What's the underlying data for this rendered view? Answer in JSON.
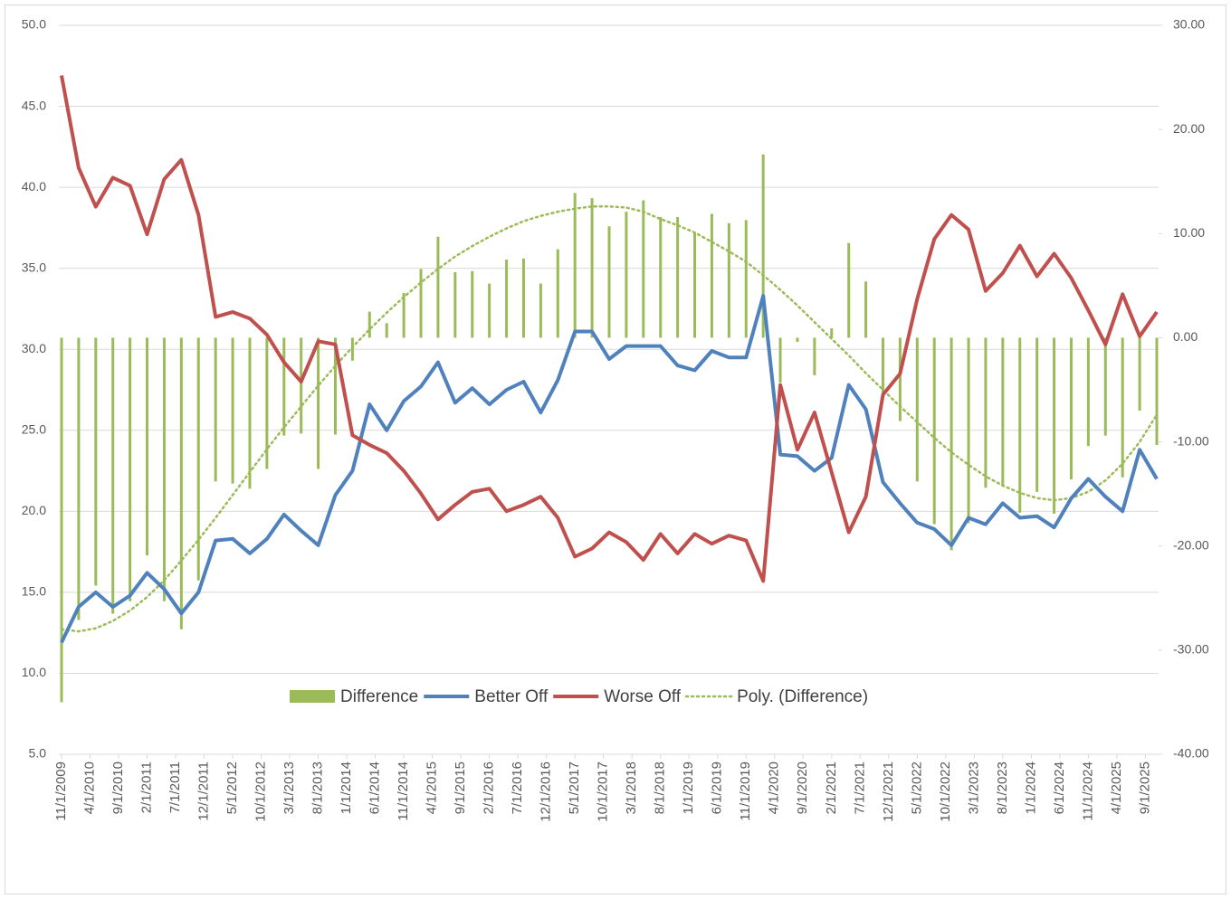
{
  "chart_data": {
    "type": "bar-line",
    "x": [
      "11/1/2009",
      "2/1/2010",
      "5/1/2010",
      "8/1/2010",
      "11/1/2010",
      "2/1/2011",
      "5/1/2011",
      "8/1/2011",
      "11/1/2011",
      "2/1/2012",
      "5/1/2012",
      "8/1/2012",
      "11/1/2012",
      "2/1/2013",
      "5/1/2013",
      "8/1/2013",
      "11/1/2013",
      "2/1/2014",
      "5/1/2014",
      "8/1/2014",
      "11/1/2014",
      "2/1/2015",
      "5/1/2015",
      "8/1/2015",
      "11/1/2015",
      "2/1/2016",
      "5/1/2016",
      "8/1/2016",
      "11/1/2016",
      "2/1/2017",
      "5/1/2017",
      "8/1/2017",
      "11/1/2017",
      "2/1/2018",
      "5/1/2018",
      "8/1/2018",
      "11/1/2018",
      "2/1/2019",
      "5/1/2019",
      "8/1/2019",
      "11/1/2019",
      "2/1/2020",
      "5/1/2020",
      "8/1/2020",
      "11/1/2020",
      "2/1/2021",
      "5/1/2021",
      "8/1/2021",
      "11/1/2021",
      "2/1/2022",
      "5/1/2022",
      "8/1/2022",
      "11/1/2022",
      "2/1/2023",
      "5/1/2023",
      "8/1/2023",
      "11/1/2023",
      "2/1/2024",
      "5/1/2024",
      "8/1/2024",
      "11/1/2024",
      "2/1/2025",
      "5/1/2025",
      "8/1/2025",
      "11/1/2025"
    ],
    "xlim": [
      "11/1/2009",
      "11/1/2025"
    ],
    "xticks": [
      "11/1/2009",
      "4/1/2010",
      "9/1/2010",
      "2/1/2011",
      "7/1/2011",
      "12/1/2011",
      "5/1/2012",
      "10/1/2012",
      "3/1/2013",
      "8/1/2013",
      "1/1/2014",
      "6/1/2014",
      "11/1/2014",
      "4/1/2015",
      "9/1/2015",
      "2/1/2016",
      "7/1/2016",
      "12/1/2016",
      "5/1/2017",
      "10/1/2017",
      "3/1/2018",
      "8/1/2018",
      "1/1/2019",
      "6/1/2019",
      "11/1/2019",
      "4/1/2020",
      "9/1/2020",
      "2/1/2021",
      "7/1/2021",
      "12/1/2021",
      "5/1/2022",
      "10/1/2022",
      "3/1/2023",
      "8/1/2023",
      "1/1/2024",
      "6/1/2024",
      "11/1/2024",
      "4/1/2025",
      "9/1/2025"
    ],
    "ylim": [
      5,
      50
    ],
    "yticks": [
      {
        "value": 5,
        "label": "5.0"
      },
      {
        "value": 10,
        "label": "10.0"
      },
      {
        "value": 15,
        "label": "15.0"
      },
      {
        "value": 20,
        "label": "20.0"
      },
      {
        "value": 25,
        "label": "25.0"
      },
      {
        "value": 30,
        "label": "30.0"
      },
      {
        "value": 35,
        "label": "35.0"
      },
      {
        "value": 40,
        "label": "40.0"
      },
      {
        "value": 45,
        "label": "45.0"
      },
      {
        "value": 50,
        "label": "50.0"
      }
    ],
    "y2lim": [
      -40,
      30
    ],
    "y2ticks": [
      {
        "value": -40,
        "label": "-40.00"
      },
      {
        "value": -30,
        "label": "-30.00"
      },
      {
        "value": -20,
        "label": "-20.00"
      },
      {
        "value": -10,
        "label": "-10.00"
      },
      {
        "value": 0,
        "label": "0.00"
      },
      {
        "value": 10,
        "label": "10.00"
      },
      {
        "value": 20,
        "label": "20.00"
      },
      {
        "value": 30,
        "label": "30.00"
      }
    ],
    "grid": true,
    "legend": "bottom-inside",
    "series": [
      {
        "name": "Difference",
        "type": "bar",
        "axis": "y2",
        "color": "#9bbb59",
        "values": [
          -35.0,
          -27.1,
          -23.8,
          -26.5,
          -25.3,
          -20.9,
          -25.3,
          -28.0,
          -23.3,
          -13.8,
          -14.0,
          -14.5,
          -12.6,
          -9.4,
          -9.2,
          -12.6,
          -9.3,
          -2.2,
          2.5,
          1.4,
          4.3,
          6.6,
          9.7,
          6.3,
          6.4,
          5.2,
          7.5,
          7.6,
          5.2,
          8.5,
          13.9,
          13.4,
          10.7,
          12.1,
          13.2,
          11.6,
          11.6,
          10.1,
          11.9,
          11.0,
          11.3,
          17.6,
          -4.3,
          -0.4,
          -3.6,
          0.9,
          9.1,
          5.4,
          -5.4,
          -8.0,
          -13.8,
          -17.9,
          -20.4,
          -17.8,
          -14.4,
          -14.2,
          -16.8,
          -14.8,
          -16.9,
          -13.6,
          -10.4,
          -9.4,
          -13.4,
          -7.0,
          -10.3
        ]
      },
      {
        "name": "Better Off",
        "type": "line",
        "color": "#4f81bd",
        "values": [
          11.9,
          14.1,
          15.0,
          14.1,
          14.8,
          16.2,
          15.2,
          13.7,
          15.0,
          18.2,
          18.3,
          17.4,
          18.3,
          19.8,
          18.8,
          17.9,
          21.0,
          22.5,
          26.6,
          25.0,
          26.8,
          27.7,
          29.2,
          26.7,
          27.6,
          26.6,
          27.5,
          28.0,
          26.1,
          28.1,
          31.1,
          31.1,
          29.4,
          30.2,
          30.2,
          30.2,
          29.0,
          28.7,
          29.9,
          29.5,
          29.5,
          33.3,
          23.5,
          23.4,
          22.5,
          23.3,
          27.8,
          26.3,
          21.8,
          20.5,
          19.3,
          18.9,
          17.9,
          19.6,
          19.2,
          20.5,
          19.6,
          19.7,
          19.0,
          20.8,
          22.0,
          20.9,
          20.0,
          23.8,
          22.0
        ]
      },
      {
        "name": "Worse Off",
        "type": "line",
        "color": "#c0504d",
        "values": [
          46.9,
          41.2,
          38.8,
          40.6,
          40.1,
          37.1,
          40.5,
          41.7,
          38.3,
          32.0,
          32.3,
          31.9,
          30.9,
          29.2,
          28.0,
          30.5,
          30.3,
          24.7,
          24.1,
          23.6,
          22.5,
          21.1,
          19.5,
          20.4,
          21.2,
          21.4,
          20.0,
          20.4,
          20.9,
          19.6,
          17.2,
          17.7,
          18.7,
          18.1,
          17.0,
          18.6,
          17.4,
          18.6,
          18.0,
          18.5,
          18.2,
          15.7,
          27.8,
          23.8,
          26.1,
          22.4,
          18.7,
          20.9,
          27.2,
          28.5,
          33.1,
          36.8,
          38.3,
          37.4,
          33.6,
          34.7,
          36.4,
          34.5,
          35.9,
          34.4,
          32.4,
          30.3,
          33.4,
          30.8,
          32.3
        ]
      },
      {
        "name": "Poly. (Difference)",
        "type": "trend",
        "axis": "y2",
        "color": "#9bbb59",
        "values": [
          -28.0,
          -28.2,
          -27.9,
          -27.2,
          -26.2,
          -24.9,
          -23.3,
          -21.4,
          -19.4,
          -17.3,
          -15.1,
          -12.9,
          -10.7,
          -8.6,
          -6.6,
          -4.6,
          -2.7,
          -0.9,
          0.8,
          2.4,
          3.9,
          5.3,
          6.6,
          7.8,
          8.8,
          9.7,
          10.5,
          11.2,
          11.7,
          12.1,
          12.4,
          12.6,
          12.6,
          12.5,
          12.1,
          11.4,
          10.8,
          10.1,
          9.2,
          8.3,
          7.3,
          6.0,
          4.6,
          3.1,
          1.5,
          -0.1,
          -1.7,
          -3.4,
          -5.0,
          -6.6,
          -8.1,
          -9.6,
          -11.0,
          -12.2,
          -13.3,
          -14.2,
          -14.9,
          -15.4,
          -15.6,
          -15.4,
          -14.8,
          -13.7,
          -12.1,
          -10.0,
          -7.4
        ]
      }
    ]
  }
}
